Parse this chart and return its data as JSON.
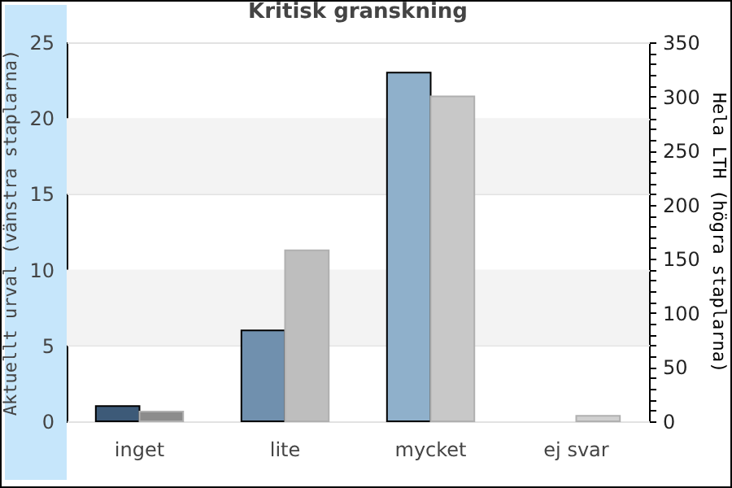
{
  "chart_data": {
    "type": "bar",
    "title": "Kritisk granskning",
    "ylabel": "Aktuellt urval (vänstra staplarna)",
    "y2label": "Hela LTH (högra staplarna)",
    "categories": [
      "inget",
      "lite",
      "mycket",
      "ej svar"
    ],
    "series": [
      {
        "colors": [
          "#3d5a78",
          "#7090ae",
          "#8fb0cb",
          "#8fb0cb"
        ],
        "values": [
          1,
          6,
          23,
          0
        ]
      },
      {
        "axis": "y2",
        "colors": [
          "#8c8c8c",
          "#bebebe",
          "#c8c8c8",
          "#d0d0d0"
        ],
        "values": [
          9,
          158,
          300,
          5
        ]
      }
    ],
    "ylim": [
      0,
      25
    ],
    "yticks": [
      0,
      5,
      10,
      15,
      20,
      25
    ],
    "y2lim": [
      0,
      350
    ],
    "y2ticks": [
      0,
      {
        "value": 10,
        "label": null
      },
      {
        "value": 20,
        "label": null
      },
      {
        "value": 30,
        "label": null
      },
      {
        "value": 40,
        "label": null
      },
      50,
      {
        "value": 60,
        "label": null
      },
      {
        "value": 70,
        "label": null
      },
      {
        "value": 80,
        "label": null
      },
      {
        "value": 90,
        "label": null
      },
      100,
      {
        "value": 110,
        "label": null
      },
      {
        "value": 120,
        "label": null
      },
      {
        "value": 130,
        "label": null
      },
      {
        "value": 140,
        "label": null
      },
      150,
      {
        "value": 160,
        "label": null
      },
      {
        "value": 170,
        "label": null
      },
      {
        "value": 180,
        "label": null
      },
      {
        "value": 190,
        "label": null
      },
      200,
      {
        "value": 210,
        "label": null
      },
      {
        "value": 220,
        "label": null
      },
      {
        "value": 230,
        "label": null
      },
      {
        "value": 240,
        "label": null
      },
      250,
      {
        "value": 260,
        "label": null
      },
      {
        "value": 270,
        "label": null
      },
      {
        "value": 280,
        "label": null
      },
      {
        "value": 290,
        "label": null
      },
      300,
      {
        "value": 310,
        "label": null
      },
      {
        "value": 320,
        "label": null
      },
      {
        "value": 330,
        "label": null
      },
      {
        "value": 340,
        "label": null
      },
      350
    ],
    "bands": [
      {
        "axis": "y",
        "from": 5,
        "to": 10,
        "color": "#f3f3f3"
      },
      {
        "axis": "y",
        "from": 15,
        "to": 20,
        "color": "#f3f3f3"
      }
    ],
    "grid": "y"
  }
}
